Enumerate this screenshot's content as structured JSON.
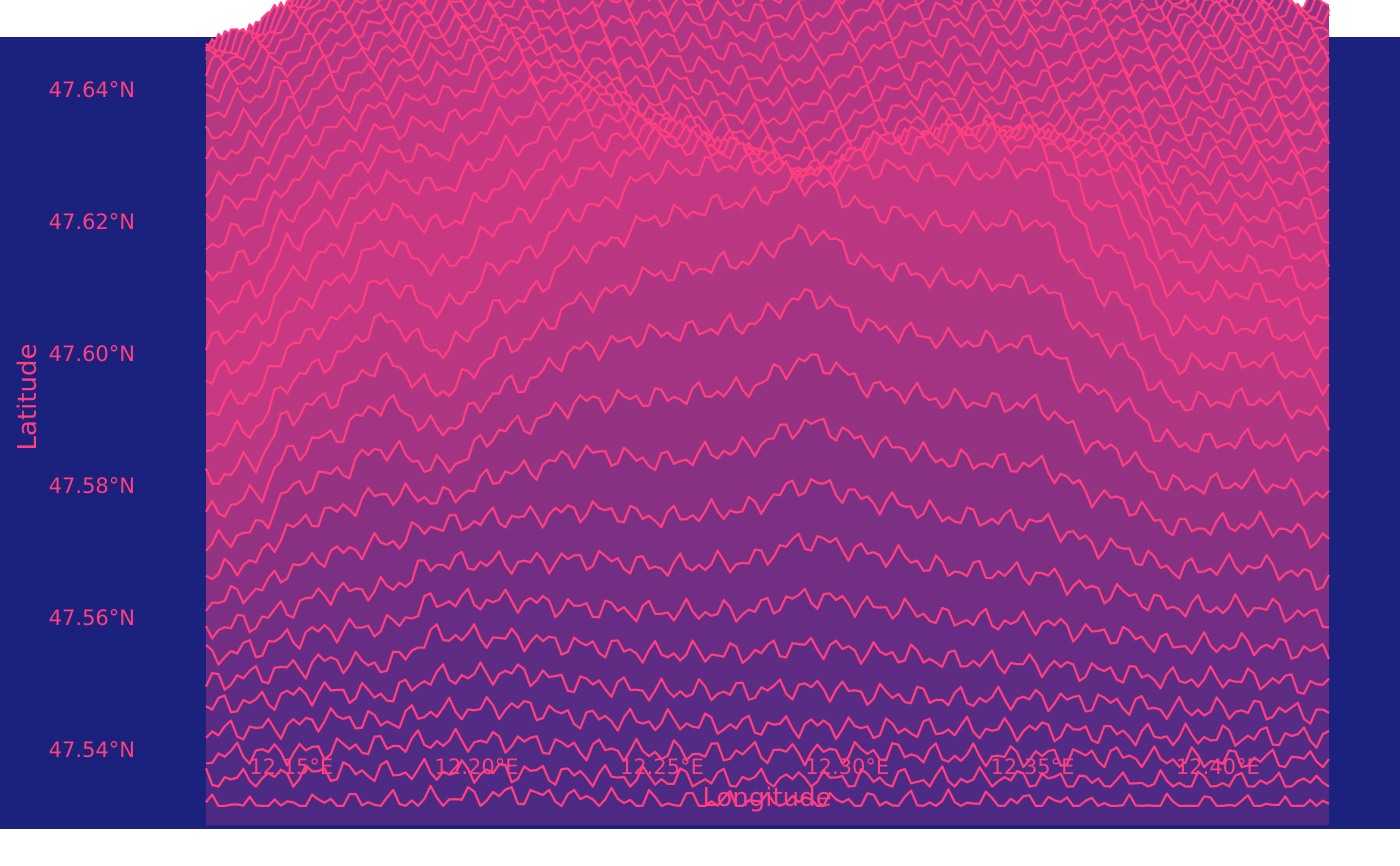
{
  "chart_data": {
    "type": "area",
    "style": "ridgeline",
    "title": "",
    "xlabel": "Longitude",
    "ylabel": "Latitude",
    "xlim": [
      12.127,
      12.43
    ],
    "ylim": [
      47.528,
      47.648
    ],
    "x_ticks": [
      {
        "value": 12.15,
        "label": "12.15°E"
      },
      {
        "value": 12.2,
        "label": "12.20°E"
      },
      {
        "value": 12.25,
        "label": "12.25°E"
      },
      {
        "value": 12.3,
        "label": "12.30°E"
      },
      {
        "value": 12.35,
        "label": "12.35°E"
      },
      {
        "value": 12.4,
        "label": "12.40°E"
      }
    ],
    "y_ticks": [
      {
        "value": 47.54,
        "label": "47.54°N"
      },
      {
        "value": 47.56,
        "label": "47.56°N"
      },
      {
        "value": 47.58,
        "label": "47.58°N"
      },
      {
        "value": 47.6,
        "label": "47.60°N"
      },
      {
        "value": 47.62,
        "label": "47.62°N"
      },
      {
        "value": 47.64,
        "label": "47.64°N"
      }
    ],
    "grid": false,
    "legend": "none",
    "ridge_count": 36,
    "ridge_baseline_lat": [
      47.5315,
      47.6345
    ],
    "ridge_max_height_lat": 0.056,
    "ridge_nodes_lon": [
      12.127,
      12.14,
      12.15,
      12.16,
      12.175,
      12.19,
      12.21,
      12.23,
      12.25,
      12.27,
      12.29,
      12.31,
      12.33,
      12.35,
      12.37,
      12.39,
      12.41,
      12.43
    ],
    "elevation_profiles": [
      [
        0.0,
        0.0,
        0.0,
        0.01,
        0.01,
        0.02,
        0.03,
        0.02,
        0.01,
        0.01,
        0.01,
        0.01,
        0.01,
        0.01,
        0.0,
        0.0,
        0.0,
        0.0
      ],
      [
        0.02,
        0.02,
        0.03,
        0.04,
        0.04,
        0.04,
        0.04,
        0.03,
        0.02,
        0.02,
        0.02,
        0.02,
        0.02,
        0.02,
        0.01,
        0.01,
        0.01,
        0.01
      ],
      [
        0.03,
        0.04,
        0.04,
        0.05,
        0.06,
        0.07,
        0.07,
        0.05,
        0.04,
        0.04,
        0.04,
        0.04,
        0.03,
        0.03,
        0.03,
        0.02,
        0.02,
        0.02
      ],
      [
        0.04,
        0.05,
        0.06,
        0.08,
        0.07,
        0.1,
        0.11,
        0.08,
        0.07,
        0.06,
        0.06,
        0.05,
        0.05,
        0.05,
        0.04,
        0.03,
        0.03,
        0.03
      ],
      [
        0.06,
        0.07,
        0.09,
        0.1,
        0.09,
        0.14,
        0.15,
        0.12,
        0.1,
        0.1,
        0.11,
        0.09,
        0.08,
        0.08,
        0.07,
        0.05,
        0.05,
        0.04
      ],
      [
        0.07,
        0.09,
        0.11,
        0.13,
        0.12,
        0.2,
        0.19,
        0.17,
        0.15,
        0.15,
        0.17,
        0.15,
        0.13,
        0.12,
        0.1,
        0.08,
        0.08,
        0.06
      ],
      [
        0.09,
        0.11,
        0.14,
        0.16,
        0.17,
        0.24,
        0.24,
        0.22,
        0.21,
        0.21,
        0.25,
        0.22,
        0.19,
        0.18,
        0.15,
        0.12,
        0.12,
        0.1
      ],
      [
        0.11,
        0.13,
        0.17,
        0.21,
        0.22,
        0.29,
        0.29,
        0.3,
        0.28,
        0.29,
        0.35,
        0.31,
        0.27,
        0.26,
        0.21,
        0.17,
        0.17,
        0.14
      ],
      [
        0.13,
        0.16,
        0.22,
        0.26,
        0.29,
        0.34,
        0.36,
        0.38,
        0.36,
        0.38,
        0.45,
        0.4,
        0.36,
        0.35,
        0.28,
        0.22,
        0.23,
        0.19
      ],
      [
        0.15,
        0.19,
        0.28,
        0.32,
        0.37,
        0.36,
        0.43,
        0.48,
        0.46,
        0.49,
        0.56,
        0.5,
        0.46,
        0.45,
        0.36,
        0.28,
        0.29,
        0.25
      ],
      [
        0.18,
        0.22,
        0.33,
        0.37,
        0.44,
        0.39,
        0.5,
        0.57,
        0.58,
        0.6,
        0.68,
        0.6,
        0.57,
        0.56,
        0.44,
        0.34,
        0.35,
        0.31
      ],
      [
        0.21,
        0.26,
        0.38,
        0.42,
        0.51,
        0.44,
        0.56,
        0.66,
        0.7,
        0.72,
        0.8,
        0.71,
        0.68,
        0.67,
        0.53,
        0.4,
        0.41,
        0.37
      ],
      [
        0.25,
        0.3,
        0.43,
        0.47,
        0.57,
        0.49,
        0.62,
        0.74,
        0.81,
        0.84,
        0.92,
        0.82,
        0.79,
        0.78,
        0.62,
        0.46,
        0.47,
        0.42
      ],
      [
        0.29,
        0.34,
        0.47,
        0.52,
        0.63,
        0.55,
        0.68,
        0.82,
        0.91,
        0.95,
        1.0,
        0.92,
        0.89,
        0.9,
        0.7,
        0.51,
        0.52,
        0.46
      ],
      [
        0.33,
        0.38,
        0.51,
        0.57,
        0.68,
        0.61,
        0.74,
        0.88,
        0.98,
        1.0,
        0.97,
        0.99,
        0.97,
        0.99,
        0.77,
        0.56,
        0.56,
        0.5
      ],
      [
        0.37,
        0.42,
        0.55,
        0.62,
        0.73,
        0.67,
        0.8,
        0.93,
        1.0,
        0.98,
        0.91,
        1.0,
        1.0,
        1.0,
        0.83,
        0.6,
        0.6,
        0.53
      ],
      [
        0.41,
        0.46,
        0.59,
        0.66,
        0.77,
        0.73,
        0.85,
        0.96,
        0.97,
        0.94,
        0.86,
        0.97,
        0.98,
        0.97,
        0.86,
        0.63,
        0.62,
        0.56
      ],
      [
        0.45,
        0.5,
        0.63,
        0.7,
        0.8,
        0.78,
        0.89,
        0.97,
        0.93,
        0.88,
        0.8,
        0.91,
        0.93,
        0.92,
        0.86,
        0.65,
        0.64,
        0.58
      ],
      [
        0.49,
        0.54,
        0.66,
        0.73,
        0.82,
        0.82,
        0.92,
        0.96,
        0.89,
        0.82,
        0.74,
        0.84,
        0.87,
        0.86,
        0.84,
        0.66,
        0.65,
        0.6
      ],
      [
        0.52,
        0.57,
        0.69,
        0.76,
        0.83,
        0.85,
        0.94,
        0.93,
        0.84,
        0.76,
        0.69,
        0.77,
        0.81,
        0.8,
        0.8,
        0.66,
        0.66,
        0.61
      ],
      [
        0.55,
        0.6,
        0.71,
        0.78,
        0.84,
        0.87,
        0.94,
        0.89,
        0.79,
        0.71,
        0.65,
        0.71,
        0.75,
        0.75,
        0.76,
        0.66,
        0.66,
        0.62
      ],
      [
        0.57,
        0.62,
        0.73,
        0.79,
        0.84,
        0.88,
        0.93,
        0.85,
        0.75,
        0.67,
        0.62,
        0.67,
        0.71,
        0.71,
        0.73,
        0.65,
        0.66,
        0.62
      ],
      [
        0.59,
        0.64,
        0.74,
        0.8,
        0.84,
        0.88,
        0.91,
        0.81,
        0.71,
        0.64,
        0.6,
        0.64,
        0.68,
        0.69,
        0.7,
        0.64,
        0.65,
        0.62
      ],
      [
        0.6,
        0.65,
        0.74,
        0.8,
        0.83,
        0.87,
        0.88,
        0.78,
        0.68,
        0.62,
        0.59,
        0.63,
        0.66,
        0.67,
        0.68,
        0.63,
        0.64,
        0.61
      ],
      [
        0.61,
        0.66,
        0.74,
        0.79,
        0.82,
        0.85,
        0.85,
        0.76,
        0.67,
        0.61,
        0.59,
        0.62,
        0.65,
        0.66,
        0.67,
        0.62,
        0.63,
        0.6
      ],
      [
        0.61,
        0.66,
        0.73,
        0.78,
        0.8,
        0.83,
        0.83,
        0.75,
        0.66,
        0.61,
        0.59,
        0.62,
        0.64,
        0.65,
        0.66,
        0.61,
        0.62,
        0.59
      ],
      [
        0.6,
        0.65,
        0.72,
        0.76,
        0.78,
        0.81,
        0.81,
        0.74,
        0.66,
        0.61,
        0.6,
        0.62,
        0.64,
        0.65,
        0.65,
        0.6,
        0.61,
        0.58
      ],
      [
        0.58,
        0.63,
        0.7,
        0.74,
        0.76,
        0.79,
        0.79,
        0.73,
        0.66,
        0.62,
        0.61,
        0.63,
        0.64,
        0.65,
        0.64,
        0.59,
        0.6,
        0.57
      ],
      [
        0.55,
        0.6,
        0.67,
        0.71,
        0.73,
        0.76,
        0.77,
        0.72,
        0.66,
        0.62,
        0.62,
        0.63,
        0.64,
        0.64,
        0.63,
        0.57,
        0.58,
        0.55
      ],
      [
        0.51,
        0.56,
        0.63,
        0.68,
        0.7,
        0.73,
        0.74,
        0.7,
        0.65,
        0.62,
        0.62,
        0.63,
        0.63,
        0.63,
        0.61,
        0.55,
        0.56,
        0.53
      ],
      [
        0.47,
        0.52,
        0.59,
        0.64,
        0.66,
        0.69,
        0.71,
        0.68,
        0.64,
        0.61,
        0.62,
        0.62,
        0.62,
        0.61,
        0.59,
        0.53,
        0.54,
        0.51
      ],
      [
        0.42,
        0.47,
        0.54,
        0.59,
        0.61,
        0.64,
        0.67,
        0.65,
        0.62,
        0.6,
        0.61,
        0.61,
        0.6,
        0.59,
        0.56,
        0.5,
        0.51,
        0.48
      ],
      [
        0.37,
        0.41,
        0.48,
        0.53,
        0.56,
        0.59,
        0.62,
        0.61,
        0.59,
        0.58,
        0.59,
        0.59,
        0.58,
        0.56,
        0.53,
        0.47,
        0.48,
        0.45
      ],
      [
        0.31,
        0.35,
        0.42,
        0.47,
        0.5,
        0.53,
        0.56,
        0.56,
        0.55,
        0.54,
        0.56,
        0.56,
        0.55,
        0.53,
        0.49,
        0.43,
        0.44,
        0.41
      ],
      [
        0.25,
        0.28,
        0.35,
        0.4,
        0.43,
        0.46,
        0.49,
        0.5,
        0.5,
        0.5,
        0.52,
        0.52,
        0.51,
        0.49,
        0.45,
        0.39,
        0.4,
        0.37
      ],
      [
        0.18,
        0.2,
        0.27,
        0.32,
        0.35,
        0.38,
        0.41,
        0.43,
        0.44,
        0.45,
        0.47,
        0.47,
        0.46,
        0.44,
        0.4,
        0.34,
        0.35,
        0.32
      ]
    ],
    "colors": {
      "background": "#1a227d",
      "line": "#ff3f7f",
      "fill_low": "#4a2a84",
      "fill_high": "#d33a82",
      "text": "#ff3f7f"
    }
  }
}
